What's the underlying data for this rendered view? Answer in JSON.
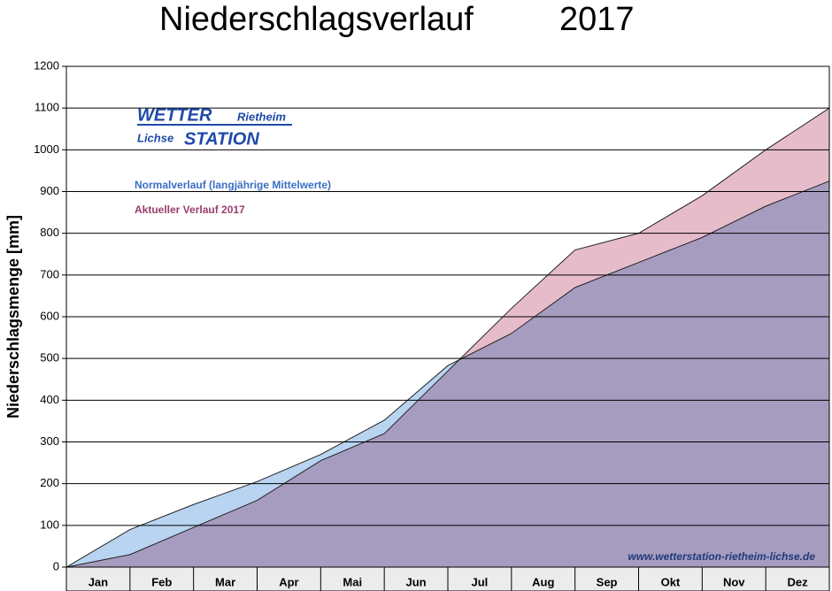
{
  "chart_data": {
    "type": "area",
    "title": "Niederschlagsverlauf",
    "subtitle": "2017",
    "y_label": "Niederschlagsmenge [mm]",
    "logo": {
      "line1": "WETTER",
      "line1b": "Rietheim",
      "line2a": "Lichse",
      "line2": "STATION"
    },
    "watermark": "www.wetterstation-rietheim-lichse.de",
    "categories": [
      "Jan",
      "Feb",
      "Mar",
      "Apr",
      "Mai",
      "Jun",
      "Jul",
      "Aug",
      "Sep",
      "Okt",
      "Nov",
      "Dez"
    ],
    "series": [
      {
        "name": "Normalverlauf (langjährige Mittelwerte)",
        "color": "#b8d4f0",
        "label_color": "#3a6fc4",
        "values": [
          90,
          150,
          205,
          270,
          352,
          483,
          560,
          670,
          730,
          790,
          865,
          925
        ]
      },
      {
        "name": "Aktueller Verlauf 2017",
        "color": "#e6bccb",
        "label_color": "#9a3d6e",
        "values": [
          30,
          95,
          160,
          255,
          320,
          470,
          620,
          760,
          800,
          890,
          1000,
          1100
        ]
      }
    ],
    "ylim": [
      0,
      1200
    ],
    "yticks": [
      0,
      100,
      200,
      300,
      400,
      500,
      600,
      700,
      800,
      900,
      1000,
      1100,
      1200
    ],
    "grid": true
  }
}
